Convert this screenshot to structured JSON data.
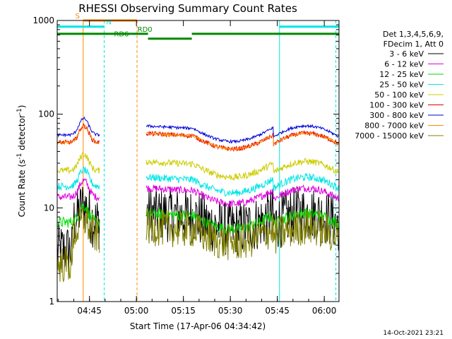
{
  "chart_data": {
    "type": "line",
    "title": "RHESSI Observing Summary Count Rates",
    "xlabel": "Start Time (17-Apr-06 04:34:42)",
    "ylabel": "Count Rate (s",
    "ylabel_sup": "-1",
    "ylabel_rest": " detector",
    "ylabel_sup2": "-1",
    "ylabel_end": ")",
    "x_range_minutes": [
      0,
      90
    ],
    "x_ticks": [
      {
        "m": 10.3,
        "label": "04:45"
      },
      {
        "m": 25.3,
        "label": "05:00"
      },
      {
        "m": 40.3,
        "label": "05:15"
      },
      {
        "m": 55.3,
        "label": "05:30"
      },
      {
        "m": 70.3,
        "label": "05:45"
      },
      {
        "m": 85.3,
        "label": "06:00"
      }
    ],
    "y_scale": "log",
    "y_range": [
      1,
      1000
    ],
    "y_tick_labels": [
      {
        "v": 1,
        "label": "1"
      },
      {
        "v": 10,
        "label": "10"
      },
      {
        "v": 100,
        "label": "100"
      },
      {
        "v": 1000,
        "label": "1000"
      }
    ],
    "legend_header": [
      "Det 1,3,4,5,6,9,",
      "FDecim 1, Att 0"
    ],
    "series": [
      {
        "name": "3 - 6 keV",
        "color": "#000000",
        "base": 7,
        "noise": 0.6
      },
      {
        "name": "6 - 12 keV",
        "color": "#e000e0",
        "base": 13,
        "noise": 0.08
      },
      {
        "name": "12 - 25 keV",
        "color": "#00dd00",
        "base": 7,
        "noise": 0.12
      },
      {
        "name": "25 - 50 keV",
        "color": "#00e5e5",
        "base": 17,
        "noise": 0.08
      },
      {
        "name": "50 - 100 keV",
        "color": "#cccc00",
        "base": 25,
        "noise": 0.07
      },
      {
        "name": "100 - 300 keV",
        "color": "#e00000",
        "base": 50,
        "noise": 0.05
      },
      {
        "name": "300 - 800 keV",
        "color": "#0000dd",
        "base": 60,
        "noise": 0.03
      },
      {
        "name": "800 - 7000 keV",
        "color": "#ff8800",
        "base": 50,
        "noise": 0.03
      },
      {
        "name": "7000 - 15000 keV",
        "color": "#808000",
        "base": 5,
        "noise": 0.4
      }
    ],
    "state_bars": [
      {
        "label": "S",
        "color": "#ff8800",
        "label_m": 6.5,
        "y": 1000,
        "segments": [
          [
            8.3,
            25.5
          ]
        ]
      },
      {
        "label": "N",
        "color": "#00e5e5",
        "label_m": 16.5,
        "y": 860,
        "segments": [
          [
            0,
            15
          ],
          [
            71,
            90
          ]
        ]
      },
      {
        "label": "RD0",
        "color": "#008800",
        "label_m": 28,
        "y": 720,
        "segments": [
          [
            0,
            29
          ],
          [
            43,
            69
          ],
          [
            69,
            90
          ]
        ]
      },
      {
        "label": "RD6",
        "color": "#008800",
        "label_m": 20.5,
        "y": 640,
        "segments": [
          [
            29,
            43
          ]
        ]
      }
    ],
    "vertical_markers": [
      {
        "m": 0,
        "color": "#00e5e5",
        "style": "solid"
      },
      {
        "m": 8.3,
        "color": "#ff8800",
        "style": "solid"
      },
      {
        "m": 15,
        "color": "#00e5e5",
        "style": "dashed"
      },
      {
        "m": 25.5,
        "color": "#ff8800",
        "style": "dashed"
      },
      {
        "m": 71,
        "color": "#00e5e5",
        "style": "solid"
      },
      {
        "m": 89,
        "color": "#00e5e5",
        "style": "dashed"
      }
    ],
    "data_gaps": [
      [
        13.5,
        28.3
      ]
    ],
    "grid": false
  },
  "timestamp": "14-Oct-2021 23:21"
}
